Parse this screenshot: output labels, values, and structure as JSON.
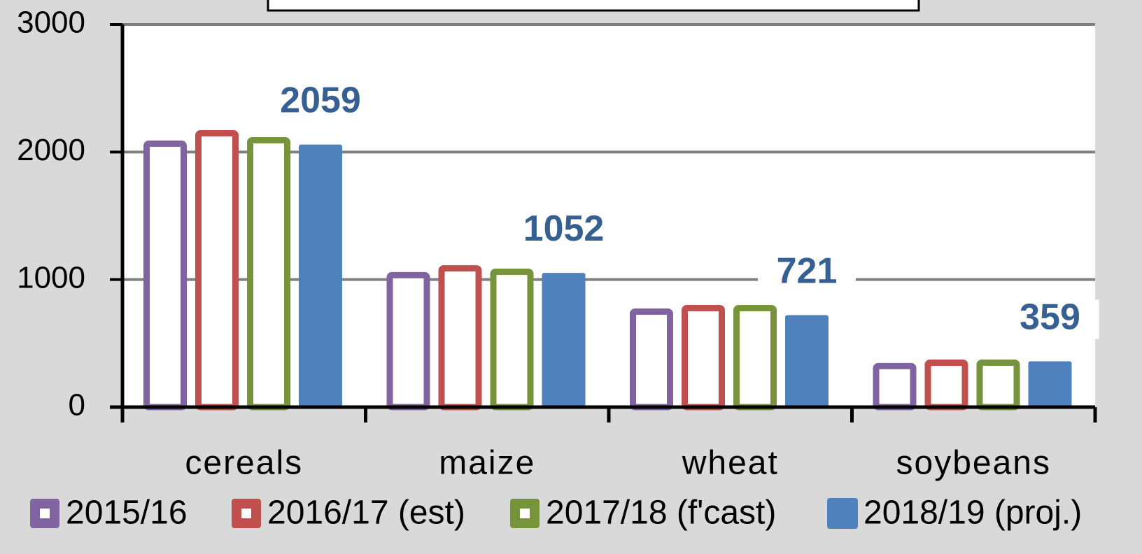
{
  "chart_data": {
    "type": "bar",
    "categories": [
      "cereals",
      "maize",
      "wheat",
      "soybeans"
    ],
    "series": [
      {
        "name": "2015/16",
        "color": "#8064a2",
        "filled": false,
        "values": [
          2090,
          1059,
          773,
          346
        ]
      },
      {
        "name": "2016/17 (est)",
        "color": "#c0504d",
        "filled": false,
        "values": [
          2172,
          1113,
          801,
          373
        ]
      },
      {
        "name": "2017/18 (f'cast)",
        "color": "#77933c",
        "filled": false,
        "values": [
          2117,
          1086,
          801,
          373
        ]
      },
      {
        "name": "2018/19 (proj.)",
        "color": "#4f81bd",
        "filled": true,
        "values": [
          2059,
          1052,
          721,
          359
        ],
        "value_labels": [
          "2059",
          "1052",
          "721",
          "359"
        ]
      }
    ],
    "ylim": [
      0,
      3000
    ],
    "yticks": [
      0,
      1000,
      2000,
      3000
    ],
    "grid": true
  }
}
